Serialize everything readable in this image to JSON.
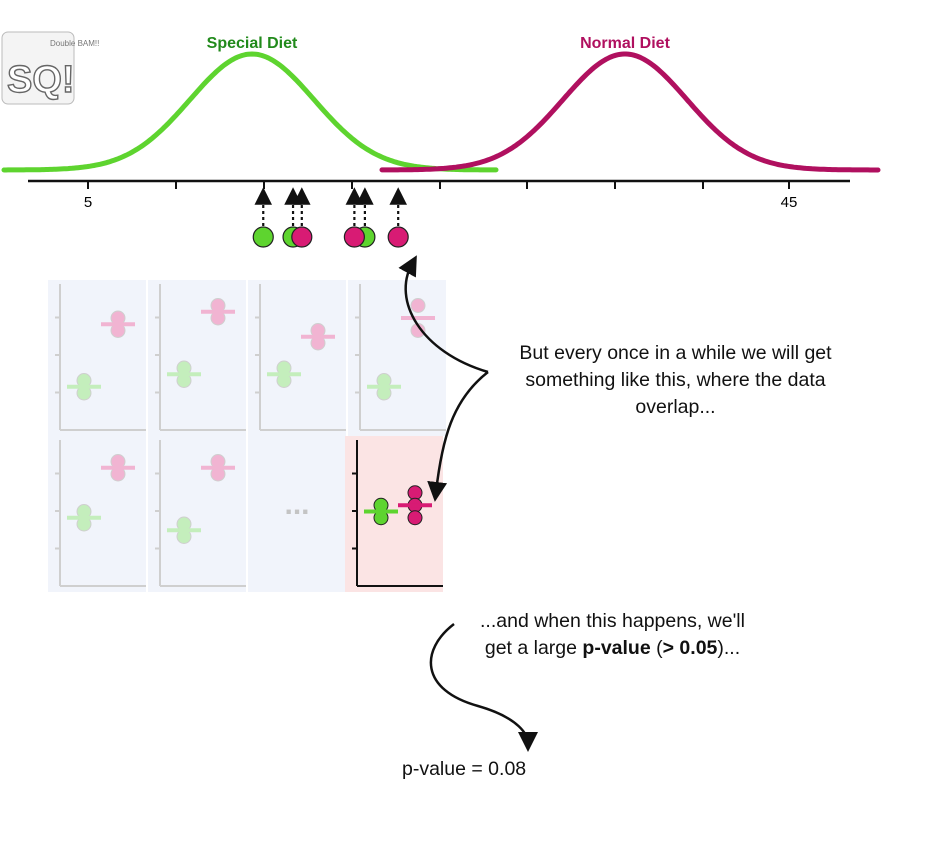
{
  "logo": {
    "name": "statquest-logo",
    "small_text": "Double BAM!!",
    "big_text": "SQ!"
  },
  "distributions": [
    {
      "name": "Special Diet",
      "color": "#5ed42f",
      "label_color": "#218a1b"
    },
    {
      "name": "Normal Diet",
      "color": "#b0105f",
      "label_color": "#b0105f"
    }
  ],
  "axis": {
    "tick_labels": [
      "5",
      "45"
    ],
    "value_min": 5,
    "value_max": 45
  },
  "samples": {
    "special": [
      15.0,
      16.7,
      20.8
    ],
    "normal": [
      17.2,
      20.2,
      22.7
    ]
  },
  "grid": {
    "panels": [
      {
        "green": [
          3,
          2
        ],
        "green_mean": 2.5,
        "pink": [
          8,
          7
        ],
        "pink_mean": 7.5
      },
      {
        "green": [
          4,
          3
        ],
        "green_mean": 3.5,
        "pink": [
          9,
          8
        ],
        "pink_mean": 8.5
      },
      {
        "green": [
          4,
          3
        ],
        "green_mean": 3.5,
        "pink": [
          7,
          6
        ],
        "pink_mean": 6.5
      },
      {
        "green": [
          3,
          2
        ],
        "green_mean": 2.5,
        "pink": [
          9,
          7
        ],
        "pink_mean": 8
      },
      {
        "green": [
          5,
          4
        ],
        "green_mean": 4.5,
        "pink": [
          9,
          8
        ],
        "pink_mean": 8.5
      },
      {
        "green": [
          4,
          3
        ],
        "green_mean": 3.5,
        "pink": [
          9,
          8
        ],
        "pink_mean": 8.5
      }
    ],
    "ellipsis": "...",
    "highlight": {
      "green": [
        5.5,
        4.5
      ],
      "green_mean": 5,
      "pink": [
        6.5,
        5.5,
        4.5
      ],
      "pink_mean": 5.5
    }
  },
  "caption1": {
    "lines": [
      "But every once in a while we will get",
      "something like this, where the data",
      "overlap..."
    ]
  },
  "caption2": {
    "line1": "...and when this happens, we'll",
    "line2_pre": "get a large ",
    "line2_bold1": "p-value",
    "line2_mid": " (",
    "line2_bold2": "> 0.05",
    "line2_post": ")..."
  },
  "pvalue_text": "p-value = 0.08",
  "colors": {
    "green": "#5ed42f",
    "pink": "#d81b74",
    "green_light": "#c4eebc",
    "pink_light": "#f1b4d2",
    "panel_bg": "#f1f4fb",
    "highlight_bg": "#fbe4e4",
    "axis_gray": "#cfcfcf"
  }
}
